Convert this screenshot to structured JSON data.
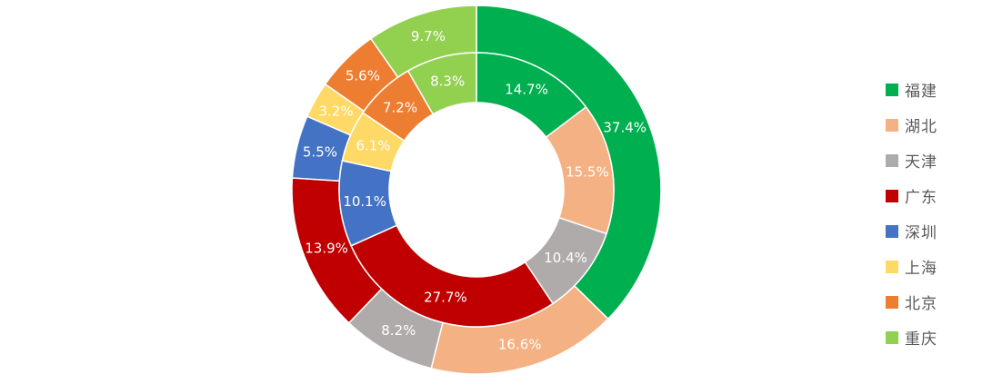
{
  "chart_data": {
    "type": "pie",
    "subtype": "double-doughnut",
    "title": "",
    "categories": [
      "福建",
      "湖北",
      "天津",
      "广东",
      "深圳",
      "上海",
      "北京",
      "重庆"
    ],
    "colors": [
      "#00B050",
      "#F4B183",
      "#AFABAB",
      "#C00000",
      "#4472C4",
      "#FFD966",
      "#ED7D31",
      "#92D050"
    ],
    "series": [
      {
        "ring": "inner",
        "values": [
          14.7,
          15.5,
          10.4,
          27.7,
          10.1,
          6.1,
          7.2,
          8.3
        ],
        "labels": [
          "14.7%",
          "15.5%",
          "10.4%",
          "27.7%",
          "10.1%",
          "6.1%",
          "7.2%",
          "8.3%"
        ]
      },
      {
        "ring": "outer",
        "values": [
          37.4,
          16.6,
          8.2,
          13.9,
          5.5,
          3.2,
          5.6,
          9.7
        ],
        "labels": [
          "37.4%",
          "16.6%",
          "8.2%",
          "13.9%",
          "5.5%",
          "3.2%",
          "5.6%",
          "9.7%"
        ]
      }
    ],
    "legend_position": "right",
    "start_angle": "12 o'clock",
    "direction": "clockwise"
  }
}
